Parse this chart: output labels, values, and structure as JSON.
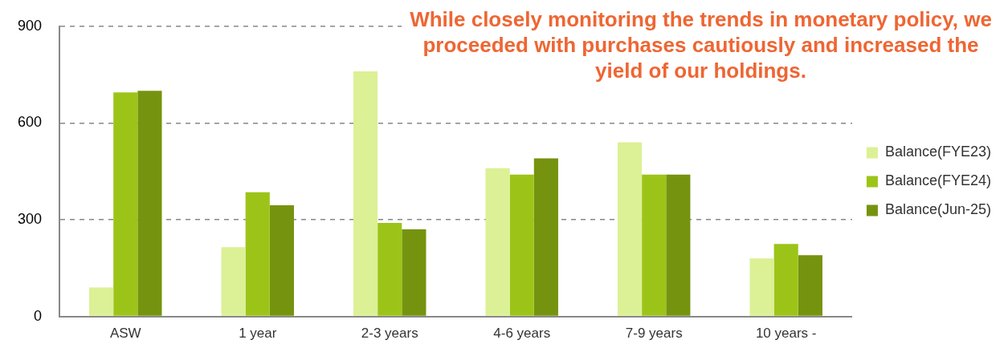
{
  "chart_data": {
    "type": "bar",
    "title": "While closely monitoring the trends in monetary policy, we proceeded with purchases cautiously and increased the yield of our holdings.",
    "categories": [
      "ASW",
      "1 year",
      "2-3 years",
      "4-6 years",
      "7-9 years",
      "10 years -"
    ],
    "series": [
      {
        "name": "Balance(FYE23)",
        "color": "#dcf095",
        "values": [
          90,
          215,
          760,
          460,
          540,
          180
        ]
      },
      {
        "name": "Balance(FYE24)",
        "color": "#9cc418",
        "values": [
          695,
          385,
          290,
          440,
          440,
          225
        ]
      },
      {
        "name": "Balance(Jun-25)",
        "color": "#76930f",
        "values": [
          700,
          345,
          270,
          490,
          440,
          190
        ]
      }
    ],
    "ylim": [
      0,
      900
    ],
    "yticks": [
      0,
      300,
      600,
      900
    ],
    "grid": "y",
    "legend": "right"
  }
}
